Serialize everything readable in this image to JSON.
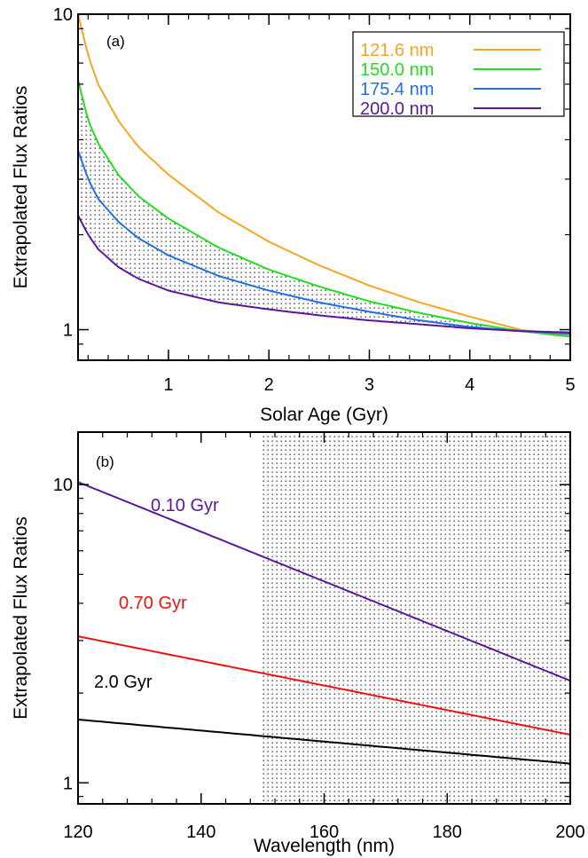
{
  "chart_data": [
    {
      "type": "line",
      "panel_label": "(a)",
      "xlabel": "Solar Age (Gyr)",
      "ylabel": "Extrapolated Flux Ratios",
      "xlim": [
        0.1,
        5
      ],
      "ylim": [
        0.8,
        10
      ],
      "yscale": "log",
      "xticks": [
        1,
        2,
        3,
        4,
        5
      ],
      "xtick_labels": [
        "1",
        "2",
        "3",
        "4",
        "5"
      ],
      "yticks": [
        1,
        10
      ],
      "ytick_labels": [
        "1",
        "10"
      ],
      "legend": "top-right",
      "shaded_region": "between 150.0 nm and 200.0 nm curves",
      "series": [
        {
          "name": "121.6 nm",
          "color": "#f5a623",
          "x": [
            0.1,
            0.2,
            0.3,
            0.5,
            0.7,
            1.0,
            1.5,
            2.0,
            2.5,
            3.0,
            3.5,
            4.0,
            4.5,
            5.0
          ],
          "y": [
            10.0,
            7.4,
            6.0,
            4.6,
            3.8,
            3.1,
            2.35,
            1.9,
            1.6,
            1.38,
            1.22,
            1.1,
            1.0,
            0.96
          ]
        },
        {
          "name": "150.0 nm",
          "color": "#22dd22",
          "x": [
            0.1,
            0.2,
            0.3,
            0.5,
            0.7,
            1.0,
            1.5,
            2.0,
            2.5,
            3.0,
            3.5,
            4.0,
            4.5,
            5.0
          ],
          "y": [
            6.2,
            4.6,
            3.9,
            3.1,
            2.65,
            2.25,
            1.82,
            1.55,
            1.37,
            1.23,
            1.13,
            1.05,
            0.99,
            0.95
          ]
        },
        {
          "name": "175.4 nm",
          "color": "#1f6fe5",
          "x": [
            0.1,
            0.2,
            0.3,
            0.5,
            0.7,
            1.0,
            1.5,
            2.0,
            2.5,
            3.0,
            3.5,
            4.0,
            4.5,
            5.0
          ],
          "y": [
            3.7,
            3.0,
            2.6,
            2.2,
            1.95,
            1.72,
            1.48,
            1.33,
            1.22,
            1.14,
            1.07,
            1.02,
            0.99,
            0.97
          ]
        },
        {
          "name": "200.0 nm",
          "color": "#5b179c",
          "x": [
            0.1,
            0.2,
            0.3,
            0.5,
            0.7,
            1.0,
            1.5,
            2.0,
            2.5,
            3.0,
            3.5,
            4.0,
            4.5,
            5.0
          ],
          "y": [
            2.3,
            2.0,
            1.8,
            1.58,
            1.45,
            1.33,
            1.22,
            1.16,
            1.11,
            1.07,
            1.04,
            1.01,
            0.99,
            0.98
          ]
        }
      ]
    },
    {
      "type": "line",
      "panel_label": "(b)",
      "xlabel": "Wavelength (nm)",
      "ylabel": "Extrapolated Flux Ratios",
      "xlim": [
        120,
        200
      ],
      "ylim": [
        0.85,
        15
      ],
      "yscale": "log",
      "xticks": [
        120,
        140,
        160,
        180,
        200
      ],
      "xtick_labels": [
        "120",
        "140",
        "160",
        "180",
        "200"
      ],
      "yticks": [
        1,
        10
      ],
      "ytick_labels": [
        "1",
        "10"
      ],
      "shaded_region": "x from 150 to 200",
      "series": [
        {
          "name": "0.10 Gyr",
          "color": "#5b179c",
          "x": [
            120,
            200
          ],
          "y": [
            10.2,
            2.2
          ]
        },
        {
          "name": "0.70 Gyr",
          "color": "#ee1111",
          "x": [
            120,
            200
          ],
          "y": [
            3.1,
            1.45
          ]
        },
        {
          "name": "2.0 Gyr",
          "color": "#000000",
          "x": [
            120,
            200
          ],
          "y": [
            1.63,
            1.16
          ]
        }
      ]
    }
  ]
}
